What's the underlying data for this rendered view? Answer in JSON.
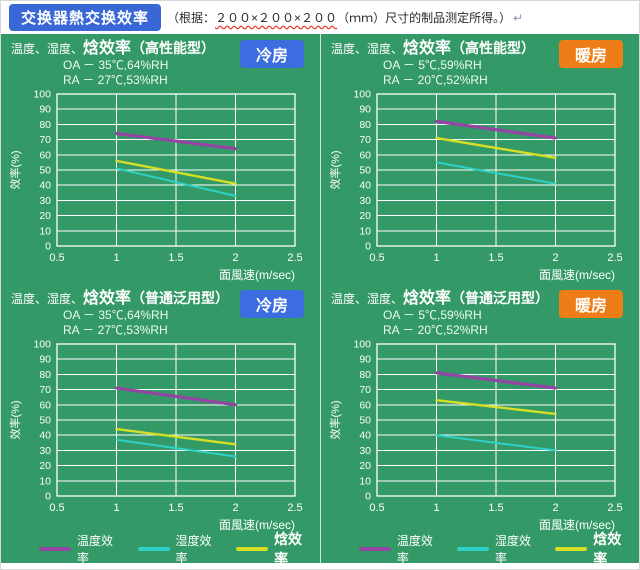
{
  "page": {
    "title": "交换器熱交换效率",
    "note_prefix": "（根据：",
    "note_dims": "２００×２００×２００",
    "note_rest": "（ｍｍ）尺寸的制品测定所得。）",
    "note_mark": "↵"
  },
  "colors": {
    "background_green": "#339966",
    "title_box_blue": "#3a67d6",
    "badge_cool": "#3b6ce0",
    "badge_warm": "#ef7d17",
    "grid_white": "#ffffff",
    "purple": "#9644a4",
    "cyan": "#2fd0c8",
    "yellow": "#d6de26"
  },
  "panels": [
    {
      "title_prefix": "温度、湿度、",
      "title_main": "焓效率",
      "title_suffix": "（高性能型）",
      "badge": "冷房",
      "badge_type": "cool",
      "oa": "OA － 35℃,64%RH",
      "ra": "RA － 27℃,53%RH"
    },
    {
      "title_prefix": "温度、湿度、",
      "title_main": "焓效率",
      "title_suffix": "（高性能型）",
      "badge": "暖房",
      "badge_type": "warm",
      "oa": "OA －  5℃,59%RH",
      "ra": "RA － 20℃,52%RH"
    },
    {
      "title_prefix": "温度、湿度、",
      "title_main": "焓效率",
      "title_suffix": "（普通泛用型）",
      "badge": "冷房",
      "badge_type": "cool",
      "oa": "OA － 35℃,64%RH",
      "ra": "RA － 27℃,53%RH"
    },
    {
      "title_prefix": "温度、湿度、",
      "title_main": "焓效率",
      "title_suffix": "（普通泛用型）",
      "badge": "暖房",
      "badge_type": "warm",
      "oa": "OA －  5℃,59%RH",
      "ra": "RA － 20℃,52%RH"
    }
  ],
  "legend": {
    "items": [
      {
        "label": "温度效率",
        "color_key": "purple",
        "emphasis": false
      },
      {
        "label": "湿度效率",
        "color_key": "cyan",
        "emphasis": false
      },
      {
        "label": "焓效率",
        "color_key": "yellow",
        "emphasis": true
      }
    ]
  },
  "chart_data": [
    {
      "type": "line",
      "title": "温度、湿度、焓效率（高性能型）冷房",
      "x": [
        1,
        2
      ],
      "series": [
        {
          "name": "温度效率",
          "color_key": "purple",
          "values": [
            74,
            64
          ]
        },
        {
          "name": "湿度效率",
          "color_key": "cyan",
          "values": [
            51,
            33
          ]
        },
        {
          "name": "焓效率",
          "color_key": "yellow",
          "values": [
            56,
            41
          ]
        }
      ],
      "xlabel": "面風速(m/sec)",
      "ylabel": "效率(%)",
      "xlim": [
        0.5,
        2.5
      ],
      "ylim": [
        0,
        100
      ],
      "xticks": [
        0.5,
        1,
        1.5,
        2,
        2.5
      ],
      "ytick_step": 10,
      "grid": true,
      "legend_position": "bottom"
    },
    {
      "type": "line",
      "title": "温度、湿度、焓效率（高性能型）暖房",
      "x": [
        1,
        2
      ],
      "series": [
        {
          "name": "温度效率",
          "color_key": "purple",
          "values": [
            82,
            71
          ]
        },
        {
          "name": "湿度效率",
          "color_key": "cyan",
          "values": [
            55,
            41
          ]
        },
        {
          "name": "焓效率",
          "color_key": "yellow",
          "values": [
            71,
            58
          ]
        }
      ],
      "xlabel": "面風速(m/sec)",
      "ylabel": "效率(%)",
      "xlim": [
        0.5,
        2.5
      ],
      "ylim": [
        0,
        100
      ],
      "xticks": [
        0.5,
        1,
        1.5,
        2,
        2.5
      ],
      "ytick_step": 10,
      "grid": true,
      "legend_position": "bottom"
    },
    {
      "type": "line",
      "title": "温度、湿度、焓效率（普通泛用型）冷房",
      "x": [
        1,
        2
      ],
      "series": [
        {
          "name": "温度效率",
          "color_key": "purple",
          "values": [
            71,
            60
          ]
        },
        {
          "name": "湿度效率",
          "color_key": "cyan",
          "values": [
            37,
            26
          ]
        },
        {
          "name": "焓效率",
          "color_key": "yellow",
          "values": [
            44,
            34
          ]
        }
      ],
      "xlabel": "面風速(m/sec)",
      "ylabel": "效率(%)",
      "xlim": [
        0.5,
        2.5
      ],
      "ylim": [
        0,
        100
      ],
      "xticks": [
        0.5,
        1,
        1.5,
        2,
        2.5
      ],
      "ytick_step": 10,
      "grid": true,
      "legend_position": "bottom"
    },
    {
      "type": "line",
      "title": "温度、湿度、焓效率（普通泛用型）暖房",
      "x": [
        1,
        2
      ],
      "series": [
        {
          "name": "温度效率",
          "color_key": "purple",
          "values": [
            81,
            71
          ]
        },
        {
          "name": "湿度效率",
          "color_key": "cyan",
          "values": [
            40,
            30
          ]
        },
        {
          "name": "焓效率",
          "color_key": "yellow",
          "values": [
            63,
            54
          ]
        }
      ],
      "xlabel": "面風速(m/sec)",
      "ylabel": "效率(%)",
      "xlim": [
        0.5,
        2.5
      ],
      "ylim": [
        0,
        100
      ],
      "xticks": [
        0.5,
        1,
        1.5,
        2,
        2.5
      ],
      "ytick_step": 10,
      "grid": true,
      "legend_position": "bottom"
    }
  ]
}
